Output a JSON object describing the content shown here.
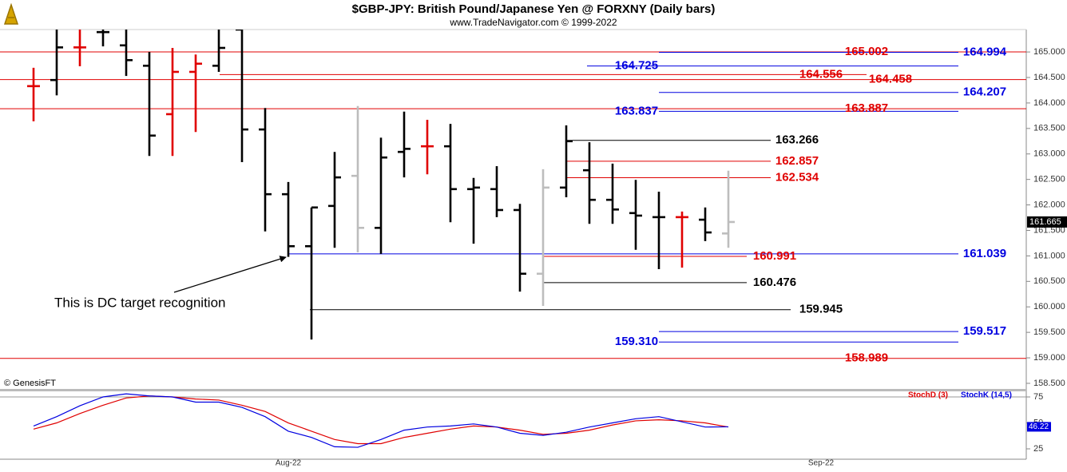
{
  "chart_data": [
    {
      "type": "ohlc",
      "title": "$GBP-JPY:  British Pound/Japanese Yen @ FORXNY  (Daily bars)",
      "subtitle": "www.TradeNavigator.com © 1999-2022",
      "credit": "© GenesisFT",
      "annotation": "This is DC target recognition",
      "categories": [
        null,
        null,
        null,
        null,
        null,
        null,
        null,
        null,
        null,
        null,
        null,
        "Aug-22",
        null,
        null,
        null,
        null,
        null,
        null,
        null,
        null,
        null,
        null,
        null,
        null,
        null,
        null,
        null,
        null,
        null,
        null,
        null,
        null,
        null,
        null,
        "Sep-22",
        null,
        null,
        null,
        null,
        null,
        null,
        null,
        null
      ],
      "open": [
        164.33,
        164.45,
        165.09,
        165.39,
        165.13,
        164.73,
        163.78,
        164.61,
        164.73,
        165.44,
        163.48,
        162.21,
        161.19,
        161.98,
        162.57,
        161.55,
        163.04,
        163.15,
        163.15,
        162.31,
        162.31,
        161.9,
        160.65,
        162.34,
        162.68,
        162.1,
        161.84,
        161.76,
        161.76,
        161.71,
        161.44,
        null,
        null,
        null,
        null,
        null,
        null,
        null,
        null,
        null,
        null,
        null,
        null
      ],
      "high": [
        164.69,
        165.5,
        165.44,
        165.5,
        165.44,
        165.0,
        165.08,
        164.95,
        165.44,
        165.5,
        163.9,
        162.45,
        161.95,
        163.04,
        163.94,
        163.32,
        163.83,
        163.67,
        163.59,
        162.53,
        162.76,
        162.02,
        162.7,
        163.56,
        163.23,
        162.81,
        162.49,
        162.26,
        161.87,
        161.95,
        162.67,
        null,
        null,
        null,
        null,
        null,
        null,
        null,
        null,
        null,
        null,
        null,
        null
      ],
      "low": [
        163.64,
        164.15,
        164.72,
        165.11,
        164.53,
        162.96,
        162.96,
        163.43,
        164.61,
        162.84,
        161.48,
        160.98,
        159.36,
        161.16,
        161.07,
        161.04,
        162.54,
        162.6,
        161.66,
        161.24,
        161.76,
        160.3,
        160.02,
        162.15,
        161.63,
        161.63,
        161.12,
        160.74,
        160.77,
        161.29,
        161.16,
        null,
        null,
        null,
        null,
        null,
        null,
        null,
        null,
        null,
        null,
        null,
        null
      ],
      "close": [
        164.33,
        165.09,
        165.09,
        165.39,
        164.84,
        163.36,
        164.61,
        164.77,
        165.08,
        163.48,
        162.21,
        161.19,
        161.95,
        162.54,
        161.55,
        162.93,
        163.1,
        163.15,
        162.31,
        162.34,
        161.9,
        160.65,
        162.34,
        163.25,
        162.1,
        161.91,
        161.79,
        161.76,
        161.76,
        161.46,
        161.665,
        null,
        null,
        null,
        null,
        null,
        null,
        null,
        null,
        null,
        null,
        null,
        null
      ],
      "bar_colors": [
        "#e00000",
        "#000000",
        "#e00000",
        "#000000",
        "#000000",
        "#000000",
        "#e00000",
        "#e00000",
        "#000000",
        "#000000",
        "#000000",
        "#000000",
        "#000000",
        "#000000",
        "#bdbdbd",
        "#000000",
        "#000000",
        "#e00000",
        "#000000",
        "#000000",
        "#000000",
        "#000000",
        "#bdbdbd",
        "#000000",
        "#000000",
        "#000000",
        "#000000",
        "#000000",
        "#e00000",
        "#000000",
        "#bdbdbd",
        null,
        null,
        null,
        null,
        null,
        null,
        null,
        null,
        null,
        null,
        null,
        null
      ],
      "ylim": [
        158.39,
        165.44
      ],
      "yticks": [
        {
          "value": 158.5,
          "label": "158.500"
        },
        {
          "value": 159,
          "label": "159.000"
        },
        {
          "value": 159.5,
          "label": "159.500"
        },
        {
          "value": 160,
          "label": "160.000"
        },
        {
          "value": 160.5,
          "label": "160.500"
        },
        {
          "value": 161,
          "label": "161.000"
        },
        {
          "value": 161.5,
          "label": "161.500"
        },
        {
          "value": 162,
          "label": "162.000"
        },
        {
          "value": 162.5,
          "label": "162.500"
        },
        {
          "value": 163,
          "label": "163.000"
        },
        {
          "value": 163.5,
          "label": "163.500"
        },
        {
          "value": 164,
          "label": "164.000"
        },
        {
          "value": 164.5,
          "label": "164.500"
        },
        {
          "value": 165,
          "label": "165.000"
        }
      ],
      "levels": [
        {
          "value": 165.002,
          "label": "165.002",
          "color": "#e00000"
        },
        {
          "value": 164.994,
          "label": "164.994",
          "color": "#0000e0"
        },
        {
          "value": 164.725,
          "label": "164.725",
          "color": "#0000e0"
        },
        {
          "value": 164.556,
          "label": "164.556",
          "color": "#e00000"
        },
        {
          "value": 164.458,
          "label": "164.458",
          "color": "#e00000"
        },
        {
          "value": 164.207,
          "label": "164.207",
          "color": "#0000e0"
        },
        {
          "value": 163.887,
          "label": "163.887",
          "color": "#e00000"
        },
        {
          "value": 163.837,
          "label": "163.837",
          "color": "#0000e0"
        },
        {
          "value": 163.266,
          "label": "163.266",
          "color": "#000000"
        },
        {
          "value": 162.857,
          "label": "162.857",
          "color": "#e00000"
        },
        {
          "value": 162.534,
          "label": "162.534",
          "color": "#e00000"
        },
        {
          "value": 161.039,
          "label": "161.039",
          "color": "#0000e0"
        },
        {
          "value": 160.991,
          "label": "160.991",
          "color": "#e00000"
        },
        {
          "value": 160.476,
          "label": "160.476",
          "color": "#000000"
        },
        {
          "value": 159.945,
          "label": "159.945",
          "color": "#000000"
        },
        {
          "value": 159.517,
          "label": "159.517",
          "color": "#0000e0"
        },
        {
          "value": 159.31,
          "label": "159.310",
          "color": "#0000e0"
        },
        {
          "value": 158.989,
          "label": "158.989",
          "color": "#e00000"
        }
      ]
    },
    {
      "type": "line",
      "series": [
        {
          "name": "StochD (3)",
          "color": "#e00000",
          "values": [
            44,
            50,
            59,
            67,
            74,
            76,
            75,
            73,
            72,
            67,
            61,
            50,
            42,
            34,
            30,
            30,
            36,
            40,
            44,
            47,
            46,
            43,
            39,
            40,
            43,
            48,
            52,
            53,
            52,
            50,
            46,
            null,
            null,
            null,
            null,
            null,
            null,
            null,
            null,
            null,
            null,
            null,
            null
          ]
        },
        {
          "name": "StochK (14,5)",
          "color": "#0000e0",
          "values": [
            47,
            56,
            66.5,
            75,
            78,
            76,
            75,
            70,
            70,
            65,
            56,
            42,
            36,
            27,
            26.5,
            34,
            43,
            46,
            47,
            49,
            46,
            40,
            38,
            41,
            46,
            50,
            54,
            56,
            51,
            46,
            46.22,
            null,
            null,
            null,
            null,
            null,
            null,
            null,
            null,
            null,
            null,
            null,
            null
          ]
        }
      ],
      "ylim": [
        15,
        80.4
      ],
      "yticks": [
        25,
        50,
        75
      ]
    }
  ]
}
